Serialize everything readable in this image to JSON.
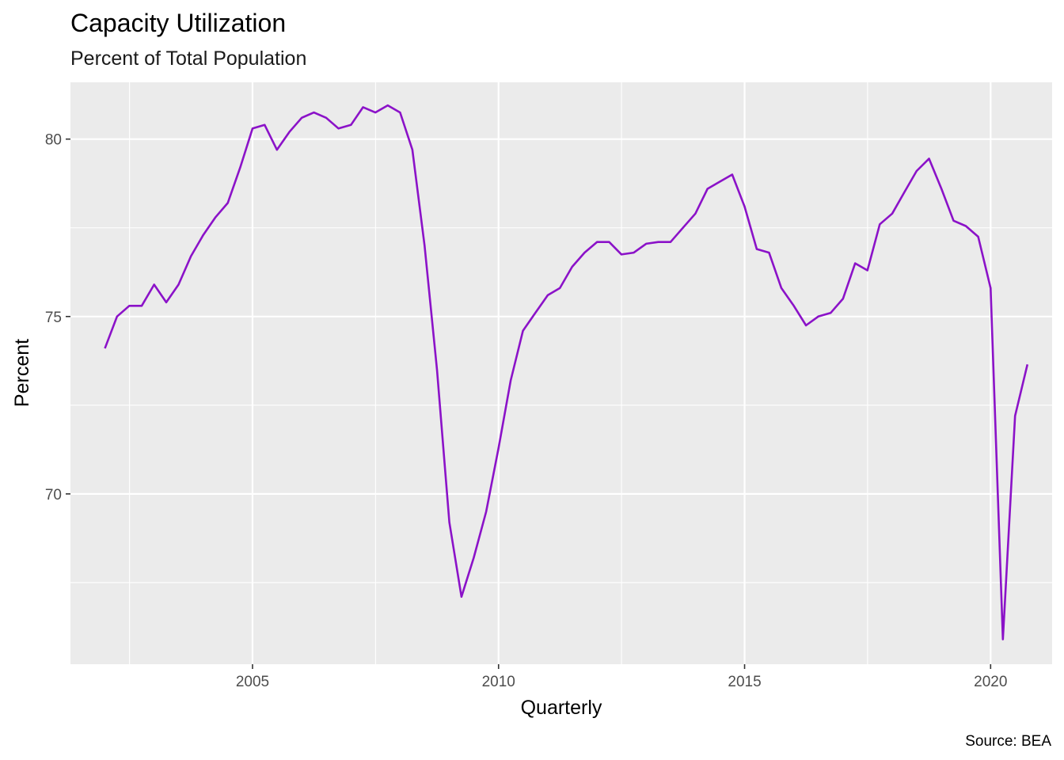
{
  "chart_data": {
    "type": "line",
    "title": "Capacity Utilization",
    "subtitle": "Percent of Total Population",
    "xlabel": "Quarterly",
    "ylabel": "Percent",
    "caption": "Source: BEA",
    "x_ticks": [
      "2005",
      "2010",
      "2015",
      "2020"
    ],
    "y_ticks": [
      "70",
      "75",
      "80"
    ],
    "xlim": [
      2001.3,
      2021.25
    ],
    "ylim": [
      65.2,
      81.6
    ],
    "grid": true,
    "line_color": "#8b12c8",
    "panel_color": "#ebebeb",
    "series": [
      {
        "x": [
          "2002-01-01",
          "2002-04-01",
          "2002-07-01",
          "2002-10-01",
          "2003-01-01",
          "2003-04-01",
          "2003-07-01",
          "2003-10-01",
          "2004-01-01",
          "2004-04-01",
          "2004-07-01",
          "2004-10-01",
          "2005-01-01",
          "2005-04-01",
          "2005-07-01",
          "2005-10-01",
          "2006-01-01",
          "2006-04-01",
          "2006-07-01",
          "2006-10-01",
          "2007-01-01",
          "2007-04-01",
          "2007-07-01",
          "2007-10-01",
          "2008-01-01",
          "2008-04-01",
          "2008-07-01",
          "2008-10-01",
          "2009-01-01",
          "2009-04-01",
          "2009-07-01",
          "2009-10-01",
          "2010-01-01",
          "2010-04-01",
          "2010-07-01",
          "2010-10-01",
          "2011-01-01",
          "2011-04-01",
          "2011-07-01",
          "2011-10-01",
          "2012-01-01",
          "2012-04-01",
          "2012-07-01",
          "2012-10-01",
          "2013-01-01",
          "2013-04-01",
          "2013-07-01",
          "2013-10-01",
          "2014-01-01",
          "2014-04-01",
          "2014-07-01",
          "2014-10-01",
          "2015-01-01",
          "2015-04-01",
          "2015-07-01",
          "2015-10-01",
          "2016-01-01",
          "2016-04-01",
          "2016-07-01",
          "2016-10-01",
          "2017-01-01",
          "2017-04-01",
          "2017-07-01",
          "2017-10-01",
          "2018-01-01",
          "2018-04-01",
          "2018-07-01",
          "2018-10-01",
          "2019-01-01",
          "2019-04-01",
          "2019-07-01",
          "2019-10-01",
          "2020-01-01",
          "2020-04-01",
          "2020-07-01",
          "2020-10-01"
        ],
        "values": [
          74.1,
          75.0,
          75.3,
          75.3,
          75.9,
          75.4,
          75.9,
          76.7,
          77.3,
          77.8,
          78.2,
          79.2,
          80.3,
          80.4,
          79.7,
          80.2,
          80.6,
          80.75,
          80.6,
          80.3,
          80.4,
          80.9,
          80.75,
          80.95,
          80.75,
          79.7,
          77.0,
          73.5,
          69.2,
          67.1,
          68.2,
          69.5,
          71.3,
          73.2,
          74.6,
          75.1,
          75.6,
          75.8,
          76.4,
          76.8,
          77.1,
          77.1,
          76.75,
          76.8,
          77.05,
          77.1,
          77.1,
          77.5,
          77.9,
          78.6,
          78.8,
          79.0,
          78.1,
          76.9,
          76.8,
          75.8,
          75.3,
          74.75,
          75.0,
          75.1,
          75.5,
          76.5,
          76.3,
          77.6,
          77.9,
          78.5,
          79.1,
          79.45,
          78.6,
          77.7,
          77.55,
          77.25,
          75.8,
          65.9,
          72.2,
          73.65
        ]
      }
    ]
  }
}
